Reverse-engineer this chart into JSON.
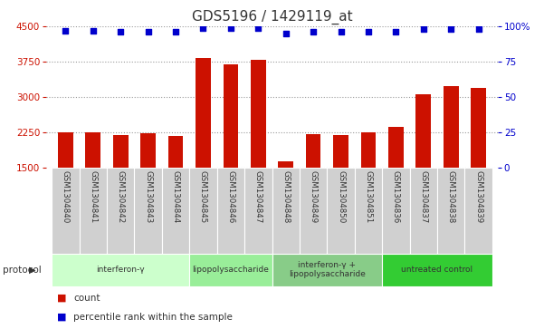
{
  "title": "GDS5196 / 1429119_at",
  "samples": [
    "GSM1304840",
    "GSM1304841",
    "GSM1304842",
    "GSM1304843",
    "GSM1304844",
    "GSM1304845",
    "GSM1304846",
    "GSM1304847",
    "GSM1304848",
    "GSM1304849",
    "GSM1304850",
    "GSM1304851",
    "GSM1304836",
    "GSM1304837",
    "GSM1304838",
    "GSM1304839"
  ],
  "counts": [
    2260,
    2245,
    2185,
    2230,
    2170,
    3830,
    3700,
    3790,
    1640,
    2220,
    2190,
    2260,
    2370,
    3060,
    3230,
    3195
  ],
  "percentile_ranks": [
    97,
    97,
    96,
    96,
    96,
    99,
    99,
    99,
    95,
    96,
    96,
    96,
    96,
    98,
    98,
    98
  ],
  "ylim_left": [
    1500,
    4500
  ],
  "ylim_right": [
    0,
    100
  ],
  "yticks_left": [
    1500,
    2250,
    3000,
    3750,
    4500
  ],
  "yticks_right": [
    0,
    25,
    50,
    75,
    100
  ],
  "bar_color": "#cc1100",
  "dot_color": "#0000cc",
  "grid_color": "#999999",
  "bg_xticklabel": "#d0d0d0",
  "protocol_groups": [
    {
      "label": "interferon-γ",
      "start": 0,
      "end": 4,
      "color": "#ccffcc"
    },
    {
      "label": "lipopolysaccharide",
      "start": 5,
      "end": 7,
      "color": "#99ee99"
    },
    {
      "label": "interferon-γ +\nlipopolysaccharide",
      "start": 8,
      "end": 11,
      "color": "#88cc88"
    },
    {
      "label": "untreated control",
      "start": 12,
      "end": 15,
      "color": "#33cc33"
    }
  ],
  "title_fontsize": 11,
  "tick_fontsize": 7.5,
  "bar_width": 0.55,
  "dot_size": 22,
  "left_axis_color": "#cc1100",
  "right_axis_color": "#0000cc",
  "protocol_label": "protocol",
  "legend_count_label": "count",
  "legend_percentile_label": "percentile rank within the sample"
}
